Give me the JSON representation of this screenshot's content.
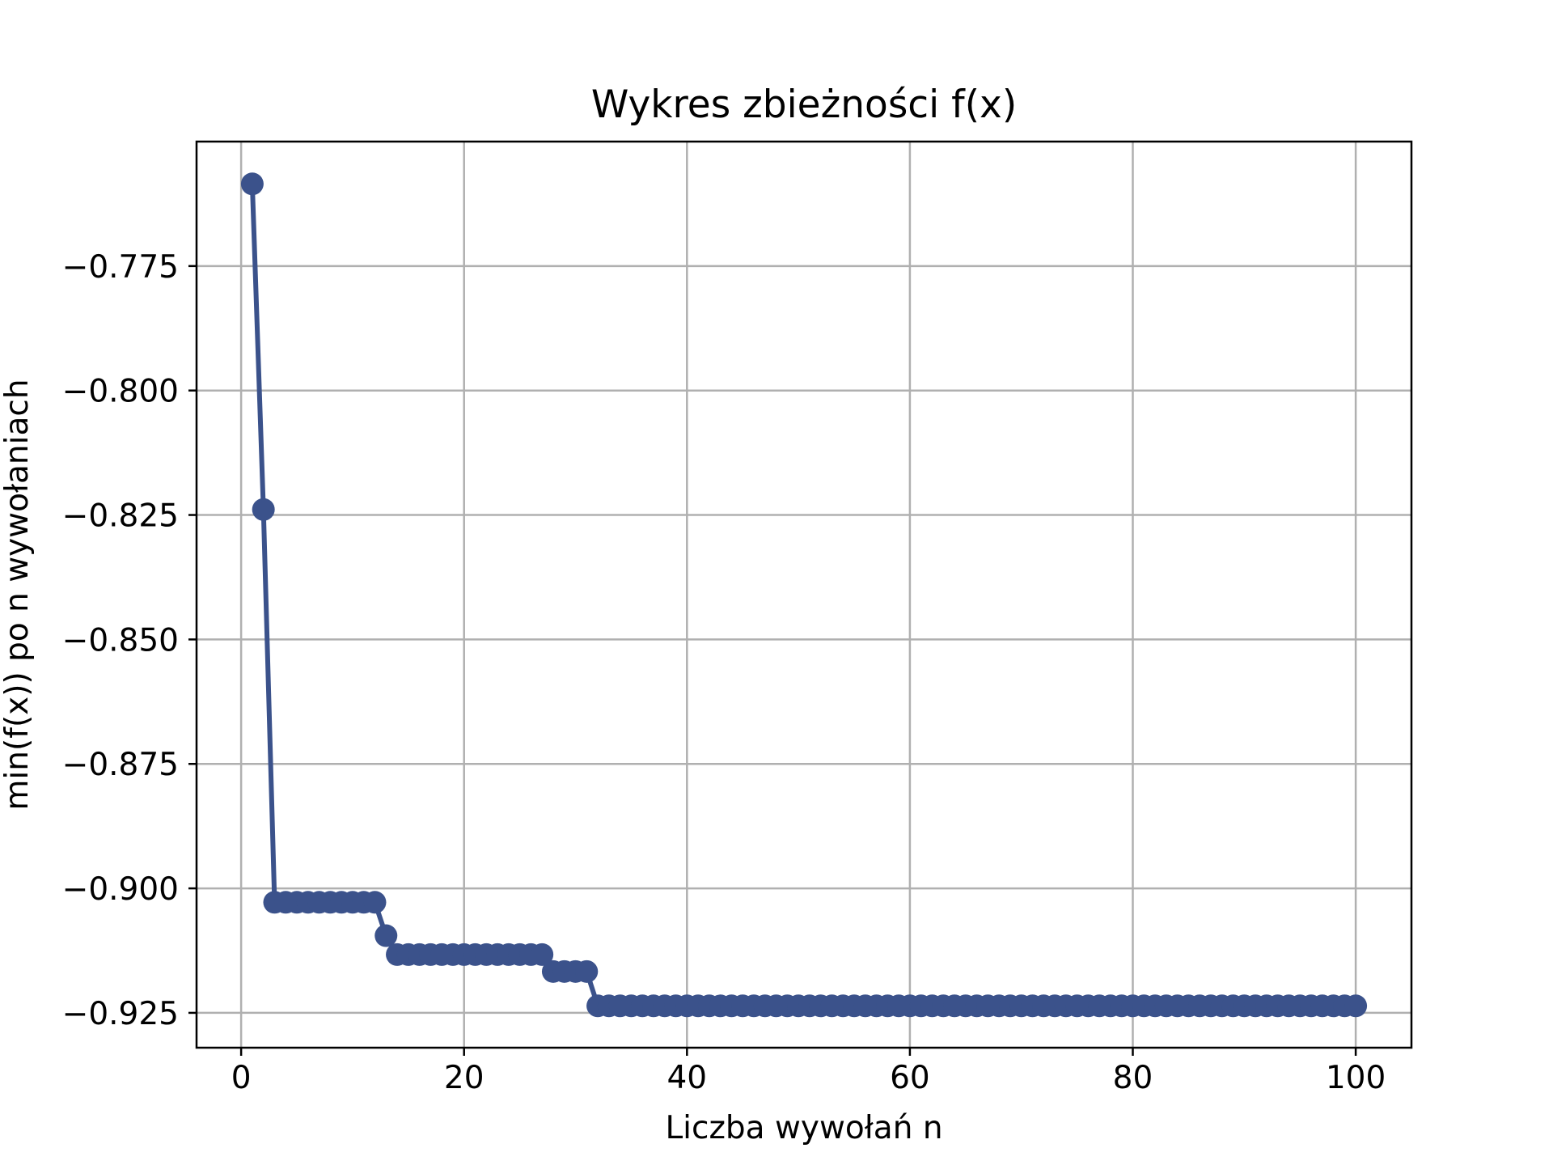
{
  "chart_data": {
    "type": "line",
    "title": "Wykres zbieżności f(x)",
    "xlabel": "Liczba wywołań n",
    "ylabel": "min(f(x)) po n wywołaniach",
    "xlim": [
      -4,
      105
    ],
    "ylim": [
      -0.932,
      -0.75
    ],
    "xticks": [
      0,
      20,
      40,
      60,
      80,
      100
    ],
    "xtick_labels": [
      "0",
      "20",
      "40",
      "60",
      "80",
      "100"
    ],
    "yticks": [
      -0.775,
      -0.8,
      -0.825,
      -0.85,
      -0.875,
      -0.9,
      -0.925
    ],
    "ytick_labels": [
      "−0.775",
      "−0.800",
      "−0.825",
      "−0.850",
      "−0.875",
      "−0.900",
      "−0.925"
    ],
    "grid": true,
    "legend": false,
    "color": "#3b528b",
    "series": [
      {
        "marker": "circle",
        "points": [
          {
            "from": 1,
            "to": 1,
            "y": -0.7585
          },
          {
            "from": 2,
            "to": 2,
            "y": -0.8239
          },
          {
            "from": 3,
            "to": 12,
            "y": -0.9028
          },
          {
            "from": 13,
            "to": 13,
            "y": -0.9095
          },
          {
            "from": 14,
            "to": 27,
            "y": -0.9133
          },
          {
            "from": 28,
            "to": 31,
            "y": -0.9167
          },
          {
            "from": 32,
            "to": 100,
            "y": -0.9236
          }
        ]
      }
    ]
  }
}
